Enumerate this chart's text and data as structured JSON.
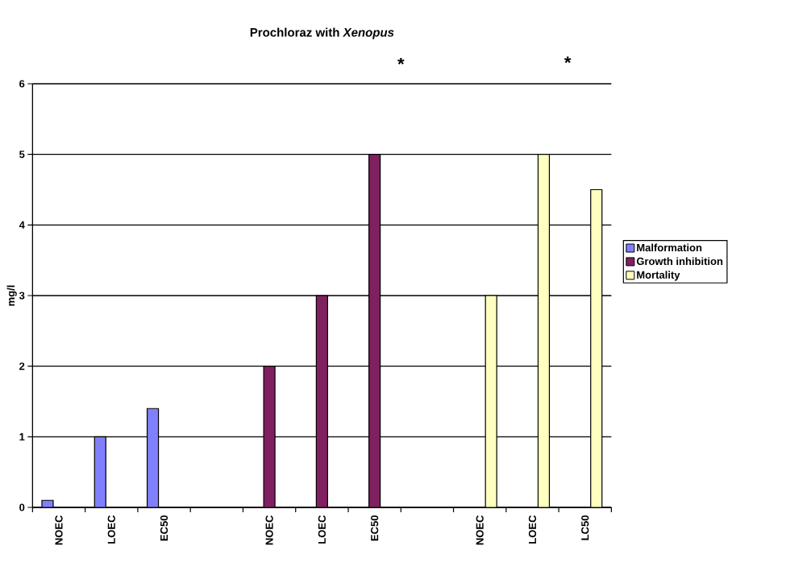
{
  "chart_data": {
    "type": "bar",
    "title": "Prochloraz with *Xenopus*",
    "ylabel": "mg/l",
    "categories": [
      "NOEC",
      "LOEC",
      "EC50",
      null,
      "NOEC",
      "LOEC",
      "EC50",
      null,
      "NOEC",
      "LOEC",
      "LC50"
    ],
    "series": [
      {
        "name": "Malformation",
        "color": "#8080ff",
        "values": [
          0.1,
          1,
          1.4,
          null,
          null,
          null,
          null,
          null,
          null,
          null,
          null
        ]
      },
      {
        "name": "Growth inhibition",
        "color": "#802060",
        "values": [
          null,
          null,
          null,
          null,
          2,
          3,
          5,
          null,
          null,
          null,
          null
        ]
      },
      {
        "name": "Mortality",
        "color": "#ffffc0",
        "values": [
          null,
          null,
          null,
          null,
          null,
          null,
          null,
          null,
          3,
          5,
          4.5
        ]
      }
    ],
    "ylim": [
      0,
      6
    ],
    "yticks": [
      0,
      1,
      2,
      3,
      4,
      5,
      6
    ],
    "grid": "y",
    "legend": "right",
    "annotations": [
      "*",
      "*"
    ]
  }
}
